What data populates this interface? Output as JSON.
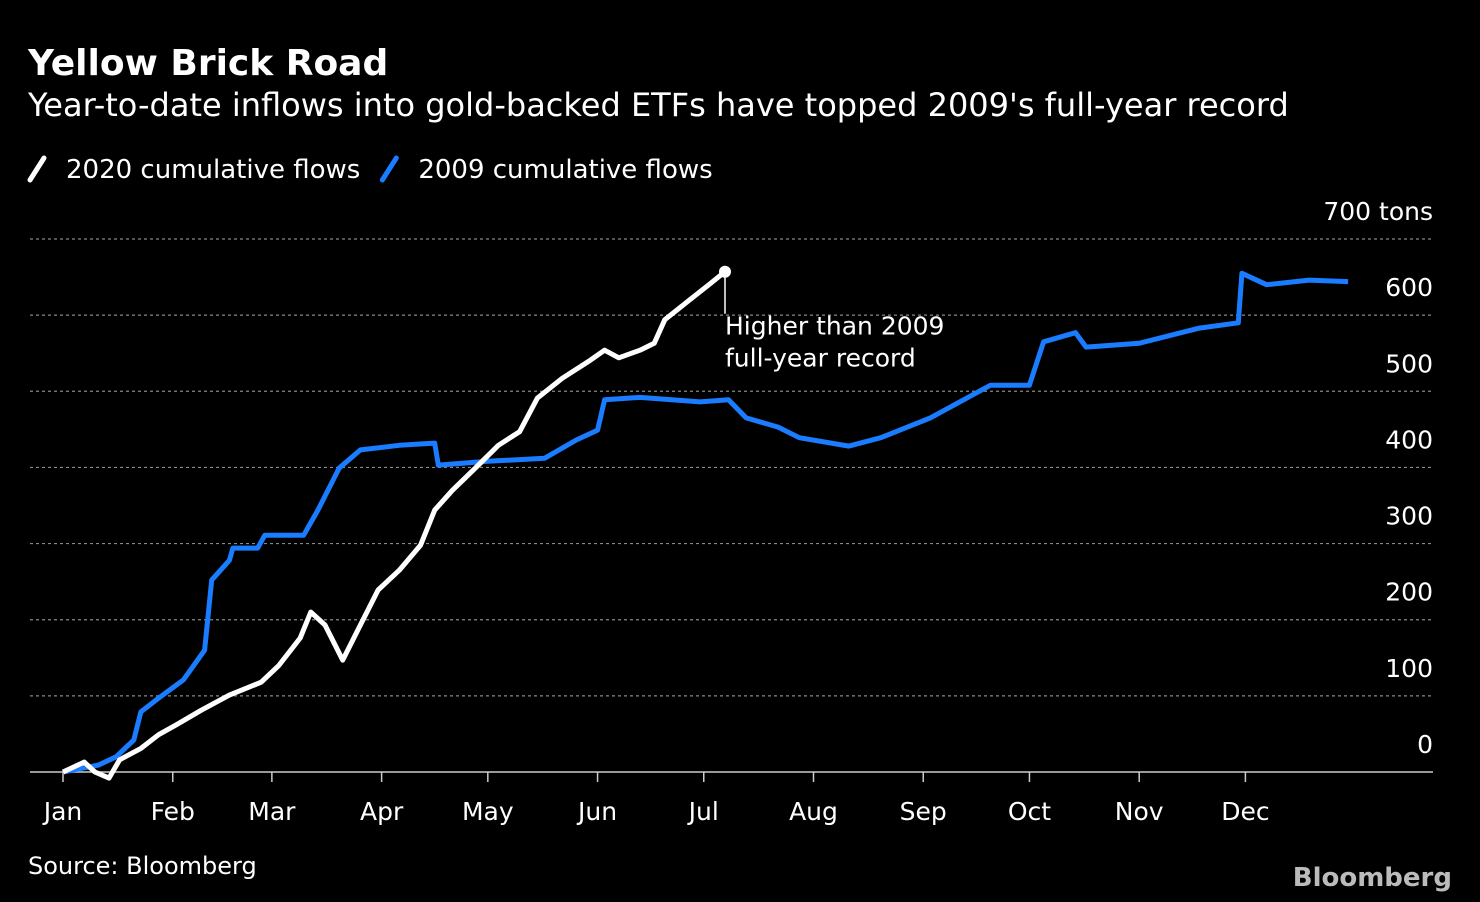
{
  "chart_data": {
    "type": "line",
    "title": "Yellow Brick Road",
    "subtitle": "Year-to-date inflows into gold-backed ETFs have topped 2009's full-year record",
    "annotations": [
      "Higher than 2009",
      "full-year record"
    ],
    "source": "Source: Bloomberg",
    "brand": "Bloomberg",
    "xlim": [
      0,
      364
    ],
    "xticks": [
      {
        "value": 0,
        "label": "Jan"
      },
      {
        "value": 31,
        "label": "Feb"
      },
      {
        "value": 59,
        "label": "Mar"
      },
      {
        "value": 90,
        "label": "Apr"
      },
      {
        "value": 120,
        "label": "May"
      },
      {
        "value": 151,
        "label": "Jun"
      },
      {
        "value": 181,
        "label": "Jul"
      },
      {
        "value": 212,
        "label": "Aug"
      },
      {
        "value": 243,
        "label": "Sep"
      },
      {
        "value": 273,
        "label": "Oct"
      },
      {
        "value": 304,
        "label": "Nov"
      },
      {
        "value": 334,
        "label": "Dec"
      }
    ],
    "ylim": [
      0,
      700
    ],
    "yticks": [
      0,
      100,
      200,
      300,
      400,
      500,
      600,
      {
        "value": 700,
        "label": "700 tons"
      }
    ],
    "grid": true,
    "series": [
      {
        "name": "2020 cumulative flows",
        "color": "#ffffff",
        "x": [
          0,
          6,
          9,
          13,
          16,
          22,
          27,
          32,
          39,
          47,
          56,
          61,
          67,
          70,
          74,
          79,
          84,
          89,
          95,
          101,
          105,
          110,
          116,
          123,
          129,
          134,
          141,
          149,
          153,
          157,
          163,
          167,
          170,
          177,
          183,
          187
        ],
        "values": [
          0,
          13,
          0,
          -8,
          16,
          31,
          49,
          62,
          81,
          101,
          118,
          140,
          176,
          210,
          193,
          147,
          193,
          239,
          265,
          298,
          344,
          370,
          397,
          429,
          447,
          491,
          517,
          541,
          554,
          544,
          554,
          563,
          594,
          620,
          642,
          657
        ]
      },
      {
        "name": "2009 cumulative flows",
        "color": "#1a7cff",
        "x": [
          0,
          10,
          15,
          20,
          22,
          27,
          34,
          40,
          42,
          47,
          48,
          55,
          57,
          68,
          72,
          78,
          84,
          95,
          105,
          106,
          120,
          136,
          145,
          151,
          153,
          163,
          180,
          188,
          193,
          202,
          208,
          222,
          231,
          245,
          262,
          273,
          277,
          286,
          289,
          304,
          321,
          332,
          333,
          340,
          352,
          363
        ],
        "values": [
          0,
          9,
          20,
          42,
          79,
          97,
          121,
          160,
          252,
          278,
          294,
          294,
          311,
          311,
          344,
          399,
          423,
          429,
          432,
          403,
          408,
          412,
          436,
          449,
          489,
          492,
          486,
          489,
          465,
          453,
          439,
          428,
          439,
          465,
          508,
          508,
          565,
          577,
          558,
          563,
          583,
          590,
          655,
          640,
          646,
          644
        ]
      }
    ]
  }
}
